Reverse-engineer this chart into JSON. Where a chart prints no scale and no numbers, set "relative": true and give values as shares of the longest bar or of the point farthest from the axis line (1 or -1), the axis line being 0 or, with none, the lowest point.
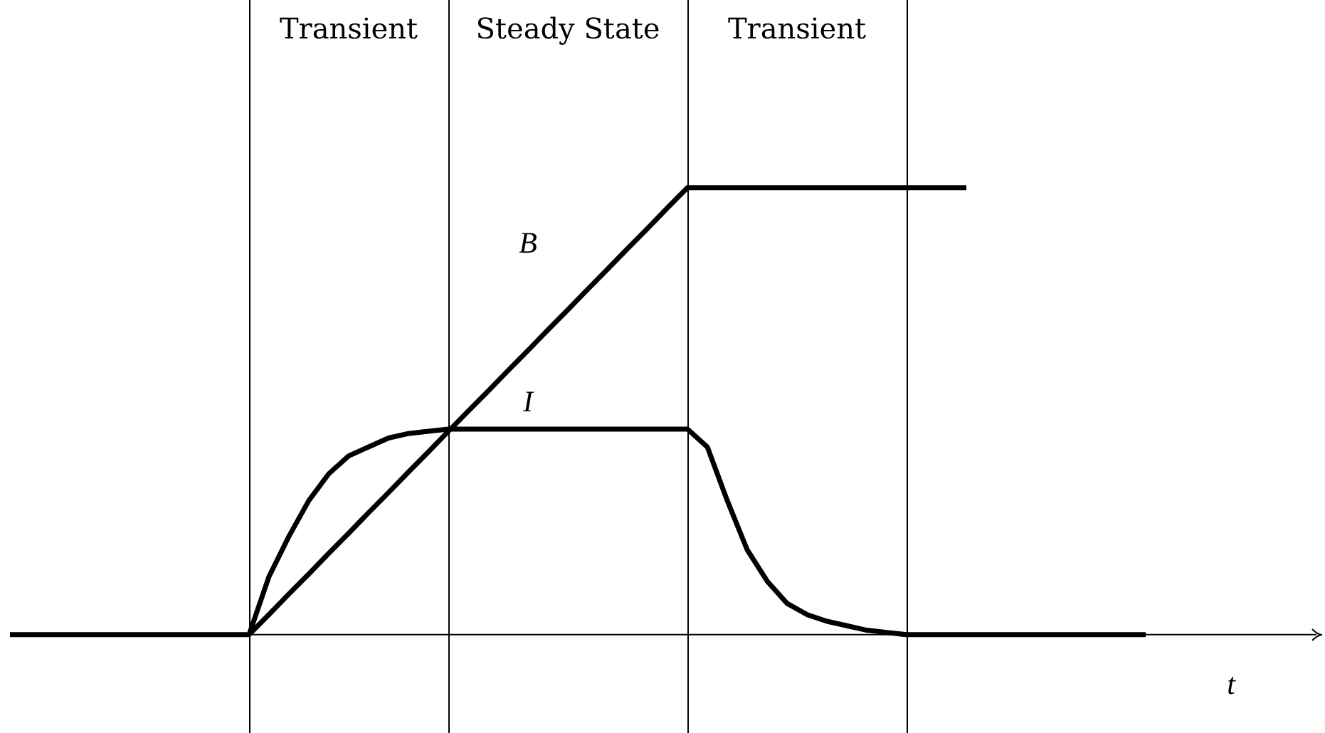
{
  "chart_data": {
    "type": "line",
    "relative": true,
    "xlabel": "t",
    "tick_labels": false,
    "legend": false,
    "marker": "none",
    "line_style": "solid",
    "categories": [
      null,
      null,
      null,
      null,
      null,
      null,
      null,
      null,
      null,
      null,
      null,
      null,
      null,
      null,
      null,
      null,
      null,
      null,
      null,
      null,
      null,
      null,
      null,
      null,
      null,
      null,
      null,
      null,
      null,
      null,
      null,
      null,
      null,
      null,
      null,
      null,
      null,
      null,
      null,
      null,
      null,
      null,
      null,
      null,
      null,
      null,
      null,
      null,
      null,
      null,
      null,
      null,
      null,
      null,
      null,
      null,
      null,
      null,
      null,
      null,
      null,
      null,
      null,
      null,
      null,
      null
    ],
    "series": [
      {
        "name": "B",
        "color": "#000000",
        "values": [
          0,
          0,
          0,
          0,
          0,
          0,
          0,
          0,
          0,
          0,
          0,
          0,
          0,
          0.045,
          0.091,
          0.136,
          0.182,
          0.227,
          0.273,
          0.318,
          0.364,
          0.409,
          0.455,
          0.5,
          0.545,
          0.591,
          0.636,
          0.682,
          0.727,
          0.773,
          0.818,
          0.864,
          0.909,
          0.955,
          1,
          1,
          1,
          1,
          1,
          1,
          1,
          1,
          1,
          1,
          1,
          1,
          1,
          1,
          1,
          null,
          null,
          null,
          null,
          null,
          null,
          null,
          null,
          null,
          null,
          null,
          null,
          null,
          null,
          null,
          null,
          null
        ]
      },
      {
        "name": "I",
        "color": "#000000",
        "values": [
          null,
          null,
          null,
          null,
          null,
          null,
          null,
          null,
          null,
          null,
          null,
          null,
          0,
          0.13,
          0.22,
          0.3,
          0.36,
          0.4,
          0.42,
          0.44,
          0.45,
          0.455,
          0.46,
          0.46,
          0.46,
          0.46,
          0.46,
          0.46,
          0.46,
          0.46,
          0.46,
          0.46,
          0.46,
          0.46,
          0.46,
          0.42,
          0.3,
          0.19,
          0.12,
          0.07,
          0.045,
          0.03,
          0.02,
          0.01,
          0.005,
          0,
          0,
          0,
          0,
          0,
          0,
          0,
          0,
          0,
          0,
          0,
          0,
          0,
          null,
          null,
          null,
          null,
          null,
          null,
          null,
          null
        ]
      }
    ],
    "annotations": [
      "Transient",
      "Steady State",
      "Transient"
    ]
  }
}
